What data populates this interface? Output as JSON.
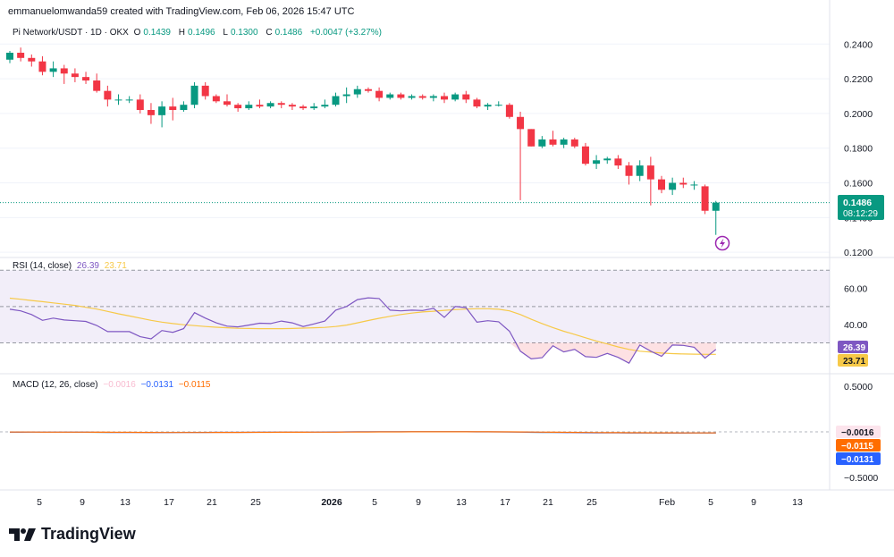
{
  "header": {
    "attribution": "emmanuelomwanda59 created with TradingView.com, Feb 06, 2026 15:47 UTC"
  },
  "main_legend": {
    "symbol": "Pi Network/USDT · 1D · OKX",
    "open_label": "O",
    "open": "0.1439",
    "high_label": "H",
    "high": "0.1496",
    "low_label": "L",
    "low": "0.1300",
    "close_label": "C",
    "close": "0.1486",
    "change": "+0.0047 (+3.27%)"
  },
  "rsi_legend": {
    "label": "RSI (14, close)",
    "rsi": "26.39",
    "ma": "23.71"
  },
  "macd_legend": {
    "label": "MACD (12, 26, close)",
    "hist": "−0.0016",
    "macd": "−0.0131",
    "signal": "−0.0115"
  },
  "price_badge": {
    "price": "0.1486",
    "countdown": "08:12:29"
  },
  "rsi_badges": {
    "rsi": "26.39",
    "ma": "23.71"
  },
  "macd_badges": {
    "hist": "−0.0016",
    "signal": "−0.0115",
    "macd": "−0.0131"
  },
  "branding": {
    "logo_text": "TradingView"
  },
  "colors": {
    "up": "#089981",
    "down": "#f23645",
    "rsi": "#7e57c2",
    "rsi_ma": "#f7c948",
    "macd": "#2962ff",
    "signal": "#ff6d00",
    "hist": "#f8bbd0"
  },
  "chart_data": [
    {
      "type": "candlestick",
      "title": "Pi Network/USDT · 1D · OKX",
      "yticks": [
        0.12,
        0.14,
        0.16,
        0.18,
        0.2,
        0.22,
        0.24
      ],
      "ylim": [
        0.118,
        0.252
      ],
      "x_date_labels": [
        "5",
        "9",
        "13",
        "17",
        "21",
        "25",
        "2026",
        "5",
        "9",
        "13",
        "17",
        "21",
        "25",
        "Feb",
        "5",
        "9",
        "13"
      ],
      "candles": [
        {
          "o": 0.231,
          "h": 0.236,
          "l": 0.229,
          "c": 0.235
        },
        {
          "o": 0.235,
          "h": 0.238,
          "l": 0.23,
          "c": 0.232
        },
        {
          "o": 0.232,
          "h": 0.234,
          "l": 0.227,
          "c": 0.23
        },
        {
          "o": 0.23,
          "h": 0.233,
          "l": 0.222,
          "c": 0.224
        },
        {
          "o": 0.224,
          "h": 0.23,
          "l": 0.221,
          "c": 0.226
        },
        {
          "o": 0.226,
          "h": 0.228,
          "l": 0.217,
          "c": 0.223
        },
        {
          "o": 0.223,
          "h": 0.226,
          "l": 0.218,
          "c": 0.221
        },
        {
          "o": 0.221,
          "h": 0.224,
          "l": 0.217,
          "c": 0.219
        },
        {
          "o": 0.219,
          "h": 0.223,
          "l": 0.212,
          "c": 0.213
        },
        {
          "o": 0.213,
          "h": 0.216,
          "l": 0.204,
          "c": 0.208
        },
        {
          "o": 0.208,
          "h": 0.211,
          "l": 0.205,
          "c": 0.208
        },
        {
          "o": 0.208,
          "h": 0.21,
          "l": 0.206,
          "c": 0.208
        },
        {
          "o": 0.208,
          "h": 0.211,
          "l": 0.2,
          "c": 0.202
        },
        {
          "o": 0.202,
          "h": 0.206,
          "l": 0.194,
          "c": 0.199
        },
        {
          "o": 0.199,
          "h": 0.207,
          "l": 0.192,
          "c": 0.204
        },
        {
          "o": 0.204,
          "h": 0.209,
          "l": 0.196,
          "c": 0.202
        },
        {
          "o": 0.202,
          "h": 0.207,
          "l": 0.201,
          "c": 0.205
        },
        {
          "o": 0.205,
          "h": 0.218,
          "l": 0.203,
          "c": 0.216
        },
        {
          "o": 0.216,
          "h": 0.218,
          "l": 0.208,
          "c": 0.21
        },
        {
          "o": 0.21,
          "h": 0.211,
          "l": 0.206,
          "c": 0.207
        },
        {
          "o": 0.207,
          "h": 0.211,
          "l": 0.204,
          "c": 0.205
        },
        {
          "o": 0.205,
          "h": 0.206,
          "l": 0.201,
          "c": 0.203
        },
        {
          "o": 0.203,
          "h": 0.207,
          "l": 0.202,
          "c": 0.205
        },
        {
          "o": 0.205,
          "h": 0.208,
          "l": 0.203,
          "c": 0.204
        },
        {
          "o": 0.204,
          "h": 0.207,
          "l": 0.203,
          "c": 0.206
        },
        {
          "o": 0.206,
          "h": 0.207,
          "l": 0.203,
          "c": 0.205
        },
        {
          "o": 0.205,
          "h": 0.206,
          "l": 0.202,
          "c": 0.204
        },
        {
          "o": 0.204,
          "h": 0.205,
          "l": 0.202,
          "c": 0.203
        },
        {
          "o": 0.203,
          "h": 0.206,
          "l": 0.202,
          "c": 0.204
        },
        {
          "o": 0.204,
          "h": 0.208,
          "l": 0.203,
          "c": 0.205
        },
        {
          "o": 0.205,
          "h": 0.212,
          "l": 0.204,
          "c": 0.21
        },
        {
          "o": 0.21,
          "h": 0.215,
          "l": 0.206,
          "c": 0.211
        },
        {
          "o": 0.211,
          "h": 0.216,
          "l": 0.209,
          "c": 0.214
        },
        {
          "o": 0.214,
          "h": 0.215,
          "l": 0.212,
          "c": 0.213
        },
        {
          "o": 0.213,
          "h": 0.215,
          "l": 0.207,
          "c": 0.209
        },
        {
          "o": 0.209,
          "h": 0.212,
          "l": 0.208,
          "c": 0.211
        },
        {
          "o": 0.211,
          "h": 0.212,
          "l": 0.208,
          "c": 0.209
        },
        {
          "o": 0.209,
          "h": 0.211,
          "l": 0.208,
          "c": 0.21
        },
        {
          "o": 0.21,
          "h": 0.211,
          "l": 0.208,
          "c": 0.209
        },
        {
          "o": 0.209,
          "h": 0.211,
          "l": 0.207,
          "c": 0.21
        },
        {
          "o": 0.21,
          "h": 0.212,
          "l": 0.206,
          "c": 0.208
        },
        {
          "o": 0.208,
          "h": 0.212,
          "l": 0.207,
          "c": 0.211
        },
        {
          "o": 0.211,
          "h": 0.213,
          "l": 0.206,
          "c": 0.208
        },
        {
          "o": 0.208,
          "h": 0.209,
          "l": 0.203,
          "c": 0.204
        },
        {
          "o": 0.204,
          "h": 0.206,
          "l": 0.202,
          "c": 0.205
        },
        {
          "o": 0.205,
          "h": 0.207,
          "l": 0.204,
          "c": 0.205
        },
        {
          "o": 0.205,
          "h": 0.206,
          "l": 0.197,
          "c": 0.198
        },
        {
          "o": 0.198,
          "h": 0.201,
          "l": 0.15,
          "c": 0.191
        },
        {
          "o": 0.191,
          "h": 0.191,
          "l": 0.181,
          "c": 0.181
        },
        {
          "o": 0.181,
          "h": 0.187,
          "l": 0.18,
          "c": 0.185
        },
        {
          "o": 0.185,
          "h": 0.19,
          "l": 0.181,
          "c": 0.182
        },
        {
          "o": 0.182,
          "h": 0.186,
          "l": 0.18,
          "c": 0.185
        },
        {
          "o": 0.185,
          "h": 0.186,
          "l": 0.18,
          "c": 0.181
        },
        {
          "o": 0.181,
          "h": 0.183,
          "l": 0.17,
          "c": 0.171
        },
        {
          "o": 0.171,
          "h": 0.176,
          "l": 0.168,
          "c": 0.173
        },
        {
          "o": 0.173,
          "h": 0.175,
          "l": 0.171,
          "c": 0.174
        },
        {
          "o": 0.174,
          "h": 0.176,
          "l": 0.168,
          "c": 0.17
        },
        {
          "o": 0.17,
          "h": 0.172,
          "l": 0.159,
          "c": 0.164
        },
        {
          "o": 0.164,
          "h": 0.173,
          "l": 0.161,
          "c": 0.17
        },
        {
          "o": 0.17,
          "h": 0.175,
          "l": 0.147,
          "c": 0.162
        },
        {
          "o": 0.162,
          "h": 0.164,
          "l": 0.154,
          "c": 0.156
        },
        {
          "o": 0.156,
          "h": 0.163,
          "l": 0.153,
          "c": 0.16
        },
        {
          "o": 0.16,
          "h": 0.163,
          "l": 0.157,
          "c": 0.159
        },
        {
          "o": 0.159,
          "h": 0.161,
          "l": 0.156,
          "c": 0.159
        },
        {
          "o": 0.158,
          "h": 0.159,
          "l": 0.142,
          "c": 0.1439
        },
        {
          "o": 0.1439,
          "h": 0.1496,
          "l": 0.13,
          "c": 0.1486
        }
      ]
    },
    {
      "type": "line",
      "title": "RSI (14, close)",
      "yticks": [
        40,
        60
      ],
      "ylim": [
        14,
        76
      ],
      "levels": [
        70,
        50,
        30
      ],
      "series": [
        {
          "name": "RSI",
          "values": [
            48.5,
            47.6,
            45.6,
            42.4,
            43.6,
            42.6,
            42.2,
            41.8,
            39.6,
            36.2,
            36.2,
            36.2,
            33.4,
            32.2,
            36.8,
            35.8,
            37.8,
            46.6,
            43.6,
            41.0,
            39.2,
            38.8,
            39.8,
            40.8,
            40.6,
            42.0,
            41.0,
            39.0,
            40.4,
            42.0,
            48.0,
            50.0,
            53.8,
            54.8,
            54.4,
            48.0,
            47.6,
            48.0,
            47.8,
            49.0,
            44.0,
            50.0,
            49.4,
            41.4,
            42.2,
            41.6,
            36.4,
            25.4,
            21.2,
            21.8,
            28.4,
            25.0,
            26.4,
            22.4,
            22.0,
            24.2,
            22.0,
            18.8,
            28.8,
            25.4,
            22.6,
            28.8,
            28.6,
            27.6,
            21.6,
            26.39
          ]
        },
        {
          "name": "RSI MA",
          "values": [
            54.6,
            54.0,
            53.3,
            52.7,
            52.0,
            51.3,
            50.6,
            49.6,
            48.6,
            47.3,
            46.0,
            44.8,
            43.6,
            42.4,
            41.4,
            40.6,
            40.0,
            39.5,
            39.0,
            38.6,
            38.3,
            38.0,
            37.9,
            37.8,
            37.8,
            37.8,
            37.9,
            38.1,
            38.3,
            38.5,
            39.0,
            39.8,
            41.0,
            42.3,
            43.5,
            44.6,
            45.6,
            46.4,
            47.0,
            47.4,
            47.9,
            48.3,
            48.6,
            48.8,
            48.8,
            48.5,
            47.6,
            45.6,
            43.0,
            40.6,
            38.4,
            36.4,
            34.6,
            32.8,
            31.0,
            29.4,
            27.8,
            26.4,
            25.4,
            24.9,
            24.4,
            24.1,
            23.9,
            23.8,
            23.7,
            23.71
          ]
        }
      ]
    },
    {
      "type": "line",
      "title": "MACD (12, 26, close)",
      "yticks": [
        0.5,
        -0.5
      ],
      "ylim": [
        -0.62,
        0.62
      ],
      "series": [
        {
          "name": "MACD",
          "values": [
            -0.004,
            -0.004,
            -0.003,
            -0.003,
            -0.003,
            -0.003,
            -0.004,
            -0.004,
            -0.005,
            -0.006,
            -0.006,
            -0.007,
            -0.007,
            -0.008,
            -0.008,
            -0.008,
            -0.007,
            -0.006,
            -0.006,
            -0.005,
            -0.005,
            -0.005,
            -0.005,
            -0.004,
            -0.004,
            -0.003,
            -0.003,
            -0.003,
            -0.003,
            -0.002,
            -0.001,
            0.0,
            0.001,
            0.001,
            0.001,
            0.001,
            0.001,
            0.001,
            0.001,
            0.001,
            0.001,
            0.001,
            0.001,
            0.0,
            0.0,
            0.0,
            -0.001,
            -0.003,
            -0.005,
            -0.006,
            -0.007,
            -0.008,
            -0.009,
            -0.01,
            -0.011,
            -0.011,
            -0.012,
            -0.013,
            -0.013,
            -0.013,
            -0.014,
            -0.014,
            -0.014,
            -0.013,
            -0.013,
            -0.0131
          ]
        },
        {
          "name": "Signal",
          "values": [
            -0.002,
            -0.002,
            -0.002,
            -0.003,
            -0.003,
            -0.003,
            -0.003,
            -0.003,
            -0.004,
            -0.004,
            -0.005,
            -0.005,
            -0.006,
            -0.006,
            -0.007,
            -0.007,
            -0.007,
            -0.007,
            -0.007,
            -0.006,
            -0.006,
            -0.006,
            -0.005,
            -0.005,
            -0.005,
            -0.004,
            -0.004,
            -0.004,
            -0.003,
            -0.003,
            -0.003,
            -0.002,
            -0.001,
            -0.001,
            0.0,
            0.0,
            0.0,
            0.001,
            0.001,
            0.001,
            0.001,
            0.001,
            0.001,
            0.001,
            0.001,
            0.0,
            0.0,
            -0.001,
            -0.002,
            -0.003,
            -0.004,
            -0.005,
            -0.006,
            -0.007,
            -0.008,
            -0.009,
            -0.009,
            -0.01,
            -0.01,
            -0.011,
            -0.011,
            -0.011,
            -0.012,
            -0.012,
            -0.012,
            -0.0115
          ]
        }
      ]
    }
  ]
}
